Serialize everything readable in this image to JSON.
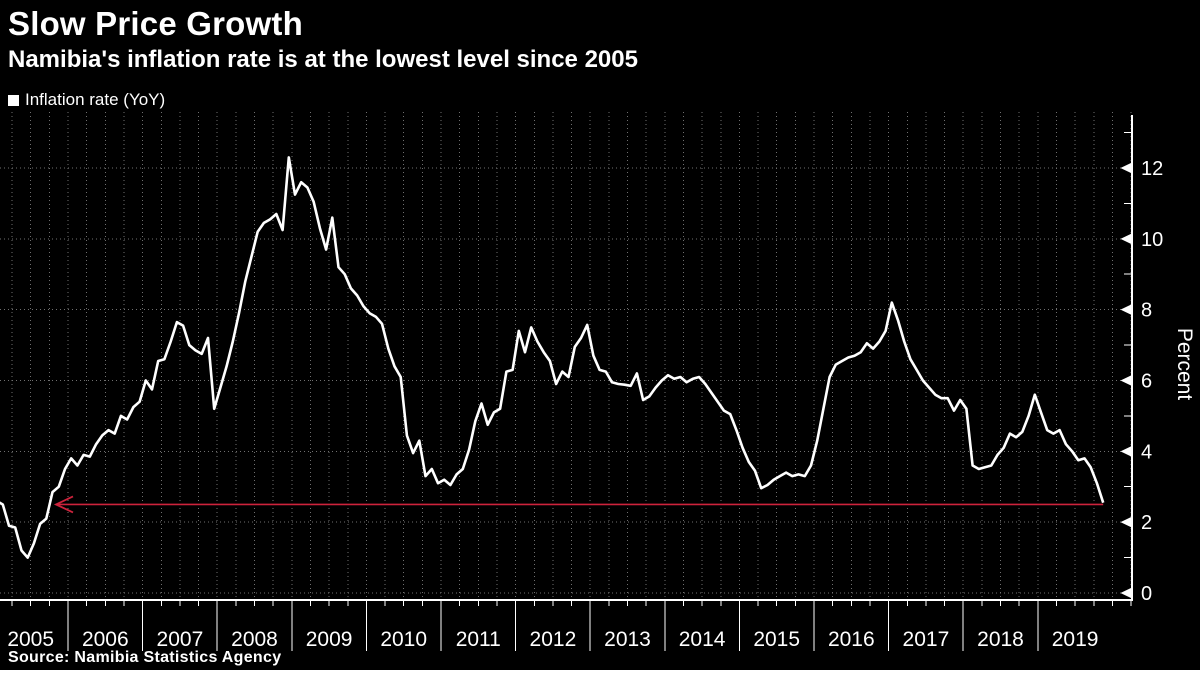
{
  "header": {
    "title": "Slow Price Growth",
    "subtitle": "Namibia's inflation rate is at the lowest level since 2005"
  },
  "legend": {
    "marker": "white-square",
    "label": "Inflation rate (YoY)"
  },
  "footer": {
    "source": "Source: Namibia Statistics Agency"
  },
  "colors": {
    "background": "#000000",
    "line": "#ffffff",
    "grid": "#707070",
    "axis": "#ffffff",
    "annotation": "#cd233c",
    "bottom_bar": "#ffffff"
  },
  "chart_data": {
    "type": "line",
    "title": "Slow Price Growth",
    "subtitle": "Namibia's inflation rate is at the lowest level since 2005",
    "ylabel": "Percent",
    "xlabel": "",
    "ylim": [
      0,
      13.5
    ],
    "y_ticks": [
      0,
      2,
      4,
      6,
      8,
      10,
      12
    ],
    "y_minor_tick_step": 1,
    "grid": "dotted-quarterly-vertical-and-major-horizontal",
    "legend_position": "top-left",
    "frequency": "monthly",
    "start_month": "2005-01",
    "end_month": "2019-11",
    "x_year_labels": [
      "2005",
      "2006",
      "2007",
      "2008",
      "2009",
      "2010",
      "2011",
      "2012",
      "2013",
      "2014",
      "2015",
      "2016",
      "2017",
      "2018",
      "2019"
    ],
    "series": [
      {
        "name": "Inflation rate (YoY)",
        "unit": "percent",
        "values": [
          2.6,
          2.5,
          1.9,
          1.85,
          1.2,
          1.0,
          1.4,
          1.95,
          2.1,
          2.85,
          3.0,
          3.5,
          3.8,
          3.6,
          3.9,
          3.85,
          4.2,
          4.45,
          4.6,
          4.5,
          5.0,
          4.9,
          5.25,
          5.4,
          6.0,
          5.75,
          6.55,
          6.6,
          7.1,
          7.65,
          7.55,
          7.0,
          6.85,
          6.75,
          7.2,
          5.2,
          5.8,
          6.4,
          7.1,
          7.9,
          8.8,
          9.5,
          10.2,
          10.45,
          10.55,
          10.7,
          10.25,
          12.3,
          11.25,
          11.6,
          11.45,
          11.05,
          10.3,
          9.7,
          10.6,
          9.2,
          9.0,
          8.6,
          8.4,
          8.1,
          7.9,
          7.8,
          7.6,
          6.9,
          6.4,
          6.1,
          4.45,
          3.95,
          4.3,
          3.3,
          3.5,
          3.1,
          3.2,
          3.05,
          3.35,
          3.5,
          4.05,
          4.85,
          5.35,
          4.75,
          5.1,
          5.2,
          6.25,
          6.3,
          7.4,
          6.8,
          7.5,
          7.1,
          6.8,
          6.55,
          5.9,
          6.25,
          6.1,
          6.95,
          7.2,
          7.57,
          6.7,
          6.3,
          6.25,
          5.95,
          5.9,
          5.88,
          5.85,
          6.2,
          5.45,
          5.55,
          5.8,
          6.0,
          6.15,
          6.05,
          6.1,
          5.95,
          6.05,
          6.1,
          5.9,
          5.65,
          5.4,
          5.15,
          5.05,
          4.6,
          4.1,
          3.7,
          3.45,
          2.96,
          3.05,
          3.2,
          3.3,
          3.4,
          3.3,
          3.35,
          3.3,
          3.6,
          4.3,
          5.2,
          6.1,
          6.45,
          6.55,
          6.65,
          6.7,
          6.8,
          7.05,
          6.9,
          7.1,
          7.4,
          8.2,
          7.7,
          7.1,
          6.6,
          6.3,
          6.0,
          5.8,
          5.6,
          5.5,
          5.5,
          5.15,
          5.45,
          5.2,
          3.6,
          3.5,
          3.55,
          3.6,
          3.9,
          4.1,
          4.5,
          4.4,
          4.55,
          5.0,
          5.6,
          5.1,
          4.6,
          4.5,
          4.6,
          4.2,
          4.0,
          3.75,
          3.8,
          3.55,
          3.1,
          2.55
        ]
      }
    ],
    "annotations": [
      {
        "type": "horizontal-reference-line",
        "value": 2.5,
        "arrow": "left",
        "meaning": "current level, lowest since 2005",
        "color": "#cd233c"
      }
    ]
  }
}
